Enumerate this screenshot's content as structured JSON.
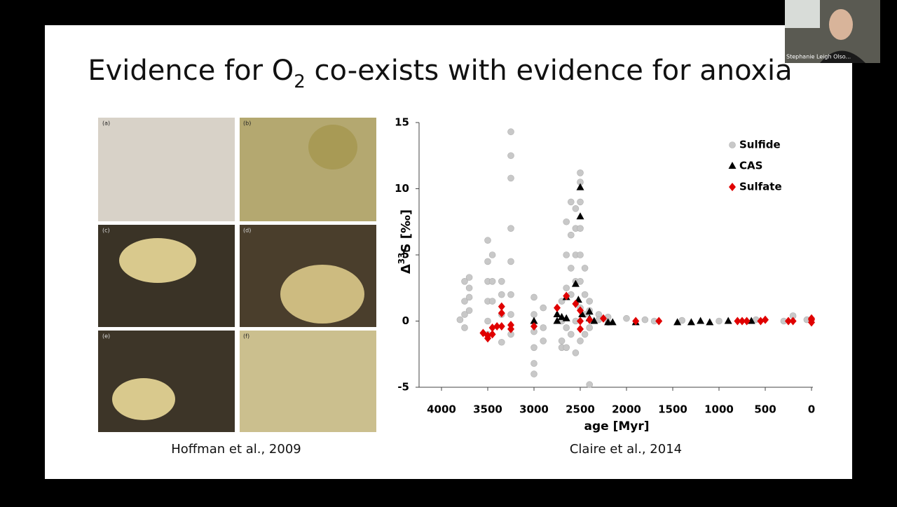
{
  "slide": {
    "title_parts": [
      "Evidence for O",
      "2",
      " co-exists with evidence for anoxia"
    ],
    "left_caption": "Hoffman et al., 2009",
    "right_caption": "Claire et al., 2014",
    "panel_labels": [
      "(a)",
      "(b)",
      "(c)",
      "(d)",
      "(e)",
      "(f)"
    ]
  },
  "participant": {
    "name": "Stephanie Leigh Olso..."
  },
  "chart_data": {
    "type": "scatter",
    "xlabel": "age [Myr]",
    "ylabel_parts": [
      "Δ",
      "33",
      "S [‰]"
    ],
    "xlim": [
      4000,
      0
    ],
    "xticks": [
      4000,
      3500,
      3000,
      2500,
      2000,
      1500,
      1000,
      500,
      0
    ],
    "ylim": [
      -5,
      15
    ],
    "yticks": [
      -5,
      0,
      5,
      10,
      15
    ],
    "grid": false,
    "legend": "upper right",
    "series": [
      {
        "name": "Sulfide",
        "color": "#c8c8c8",
        "marker": "circle",
        "x": [
          3800,
          3750,
          3750,
          3750,
          3750,
          3700,
          3700,
          3700,
          3700,
          3500,
          3500,
          3500,
          3500,
          3500,
          3500,
          3450,
          3450,
          3450,
          3350,
          3350,
          3350,
          3350,
          3250,
          3250,
          3250,
          3250,
          3250,
          3250,
          3250,
          3250,
          3000,
          3000,
          3000,
          3000,
          3000,
          3000,
          2900,
          2900,
          2900,
          2700,
          2700,
          2700,
          2700,
          2650,
          2650,
          2650,
          2650,
          2650,
          2600,
          2600,
          2600,
          2600,
          2600,
          2550,
          2550,
          2550,
          2550,
          2550,
          2550,
          2500,
          2500,
          2500,
          2500,
          2500,
          2500,
          2500,
          2500,
          2450,
          2450,
          2450,
          2450,
          2400,
          2400,
          2400,
          2400,
          2300,
          2300,
          2200,
          2200,
          2000,
          1800,
          1700,
          1400,
          1000,
          600,
          300,
          200,
          50
        ],
        "values": [
          0.1,
          3,
          1.5,
          0.5,
          -0.5,
          3.3,
          2.5,
          1.8,
          0.8,
          6.1,
          4.5,
          3,
          1.5,
          0,
          -1,
          5,
          3,
          1.5,
          3,
          2,
          0.5,
          -1.6,
          14.3,
          12.5,
          10.8,
          7,
          4.5,
          2,
          0.5,
          -1,
          1.8,
          0.5,
          -0.8,
          -2,
          -3.2,
          -4,
          1,
          -0.5,
          -1.5,
          1.5,
          0,
          -1.5,
          -2,
          7.5,
          5,
          2.5,
          -0.5,
          -2,
          9,
          6.5,
          4,
          2,
          -1,
          8.5,
          7,
          5,
          3,
          0,
          -2.4,
          11.2,
          10.5,
          9,
          7,
          5,
          3,
          1,
          -1.5,
          4,
          2,
          0.5,
          -1,
          1.5,
          0.8,
          -0.5,
          -4.8,
          0.5,
          0.1,
          0.3,
          -0.1,
          0.2,
          0.1,
          0,
          0.05,
          0,
          0.1,
          0,
          0.4,
          0.1
        ]
      },
      {
        "name": "CAS",
        "color": "#000000",
        "marker": "triangle",
        "x": [
          3000,
          2750,
          2750,
          2700,
          2650,
          2650,
          2550,
          2520,
          2500,
          2500,
          2480,
          2400,
          2400,
          2350,
          2200,
          2150,
          1900,
          1450,
          1300,
          1200,
          1100,
          900,
          650
        ],
        "values": [
          0,
          0.5,
          0,
          0.3,
          1.8,
          0.2,
          2.8,
          1.6,
          10.1,
          7.9,
          0.5,
          0.7,
          0.2,
          0,
          -0.1,
          -0.1,
          -0.1,
          -0.1,
          -0.1,
          0,
          -0.1,
          0,
          0
        ]
      },
      {
        "name": "Sulfate",
        "color": "#e00000",
        "marker": "diamond",
        "x": [
          3550,
          3500,
          3500,
          3450,
          3450,
          3400,
          3350,
          3350,
          3350,
          3250,
          3250,
          3000,
          2750,
          2650,
          2550,
          2500,
          2500,
          2500,
          2400,
          2250,
          1900,
          1650,
          800,
          750,
          700,
          550,
          500,
          250,
          200,
          0,
          0,
          0
        ],
        "values": [
          -0.9,
          -1.1,
          -1.3,
          -0.5,
          -1,
          -0.4,
          1.1,
          0.6,
          -0.4,
          -0.3,
          -0.6,
          -0.4,
          1,
          1.9,
          1.3,
          0.8,
          0,
          -0.6,
          0.1,
          0.2,
          0,
          0,
          0,
          0,
          0,
          0,
          0.1,
          0,
          0,
          0.1,
          0.2,
          -0.1
        ]
      }
    ]
  }
}
